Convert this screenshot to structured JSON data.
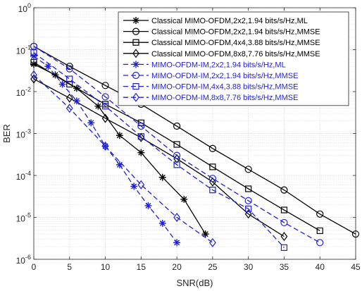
{
  "chart_data": {
    "type": "line",
    "title": "",
    "xlabel": "SNR(dB)",
    "ylabel": "BER",
    "xlim": [
      0,
      45
    ],
    "ylim": [
      1e-06,
      1
    ],
    "yscale": "log",
    "grid": true,
    "legend_position": "top-right",
    "x_ticks": [
      0,
      5,
      10,
      15,
      20,
      25,
      30,
      35,
      40,
      45
    ],
    "y_ticks": [
      {
        "value": 1,
        "exp": "0"
      },
      {
        "value": 0.1,
        "exp": "-1"
      },
      {
        "value": 0.01,
        "exp": "-2"
      },
      {
        "value": 0.001,
        "exp": "-3"
      },
      {
        "value": 0.0001,
        "exp": "-4"
      },
      {
        "value": 1e-05,
        "exp": "-5"
      },
      {
        "value": 1e-06,
        "exp": "-6"
      }
    ],
    "tick_base": "10",
    "series": [
      {
        "name": "Classical MIMO-OFDM,2x2,1.94 bits/s/Hz,ML",
        "color": "#000000",
        "dash": "solid",
        "marker": "star",
        "x": [
          0,
          3,
          6,
          9,
          12,
          15,
          18,
          21,
          24
        ],
        "y": [
          0.045,
          0.025,
          0.012,
          0.0045,
          0.0009,
          0.00035,
          9e-05,
          2.7e-05,
          4e-06
        ]
      },
      {
        "name": "Classical MIMO-OFDM,2x2,1.94 bits/s/Hz,MMSE",
        "color": "#000000",
        "dash": "solid",
        "marker": "circle",
        "x": [
          0,
          5,
          10,
          15,
          20,
          25,
          30,
          35,
          40,
          45
        ],
        "y": [
          0.12,
          0.04,
          0.014,
          0.005,
          0.0015,
          0.00044,
          0.00014,
          4.5e-05,
          1.2e-05,
          4e-06
        ]
      },
      {
        "name": "Classical MIMO-OFDM,4x4,3.88 bits/s/Hz,MMSE",
        "color": "#000000",
        "dash": "solid",
        "marker": "square",
        "x": [
          0,
          5,
          10,
          15,
          20,
          25,
          30,
          35,
          40
        ],
        "y": [
          0.05,
          0.015,
          0.005,
          0.0018,
          0.00055,
          0.00016,
          4.8e-05,
          1.5e-05,
          4.8e-06
        ]
      },
      {
        "name": "Classical MIMO-OFDM,8x8,7.76 bits/s/Hz,MMSE",
        "color": "#000000",
        "dash": "solid",
        "marker": "diamond",
        "x": [
          0,
          5,
          10,
          15,
          20,
          25,
          30,
          35
        ],
        "y": [
          0.02,
          0.007,
          0.0023,
          0.0008,
          0.00025,
          7e-05,
          1.2e-05,
          3.5e-06
        ]
      },
      {
        "name": "MIMO-OFDM-IM,2x2,1.94 bits/s/Hz,ML",
        "color": "#1f1fd6",
        "dash": "dashed",
        "marker": "star",
        "x": [
          0,
          2,
          4,
          6,
          8,
          10,
          12,
          14,
          16,
          18,
          20
        ],
        "y": [
          0.07,
          0.04,
          0.015,
          0.006,
          0.0018,
          0.0005,
          0.00018,
          5.5e-05,
          1.9e-05,
          7.2e-06,
          2.5e-06
        ]
      },
      {
        "name": "MIMO-OFDM-IM,2x2,1.94 bits/s/Hz,MMSE",
        "color": "#1f1fd6",
        "dash": "dashed",
        "marker": "circle",
        "x": [
          0,
          5,
          10,
          15,
          20,
          25,
          30,
          35,
          40
        ],
        "y": [
          0.12,
          0.035,
          0.0075,
          0.0015,
          0.0003,
          8.5e-05,
          2.5e-05,
          7.5e-06,
          2.5e-06
        ]
      },
      {
        "name": "MIMO-OFDM-IM,4x4,3.88 bits/s/Hz,MMSE",
        "color": "#1f1fd6",
        "dash": "dashed",
        "marker": "square",
        "x": [
          0,
          5,
          10,
          15,
          20,
          25,
          30,
          35
        ],
        "y": [
          0.085,
          0.02,
          0.0045,
          0.00085,
          0.00018,
          4.5e-05,
          1.6e-05,
          1.9e-06
        ]
      },
      {
        "name": "MIMO-OFDM-IM,8x8,7.76 bits/s/Hz,MMSE",
        "color": "#1f1fd6",
        "dash": "dashed",
        "marker": "diamond",
        "x": [
          0,
          5,
          10,
          15,
          20,
          25
        ],
        "y": [
          0.025,
          0.004,
          0.0005,
          6e-05,
          1e-05,
          2.5e-06
        ]
      }
    ]
  }
}
